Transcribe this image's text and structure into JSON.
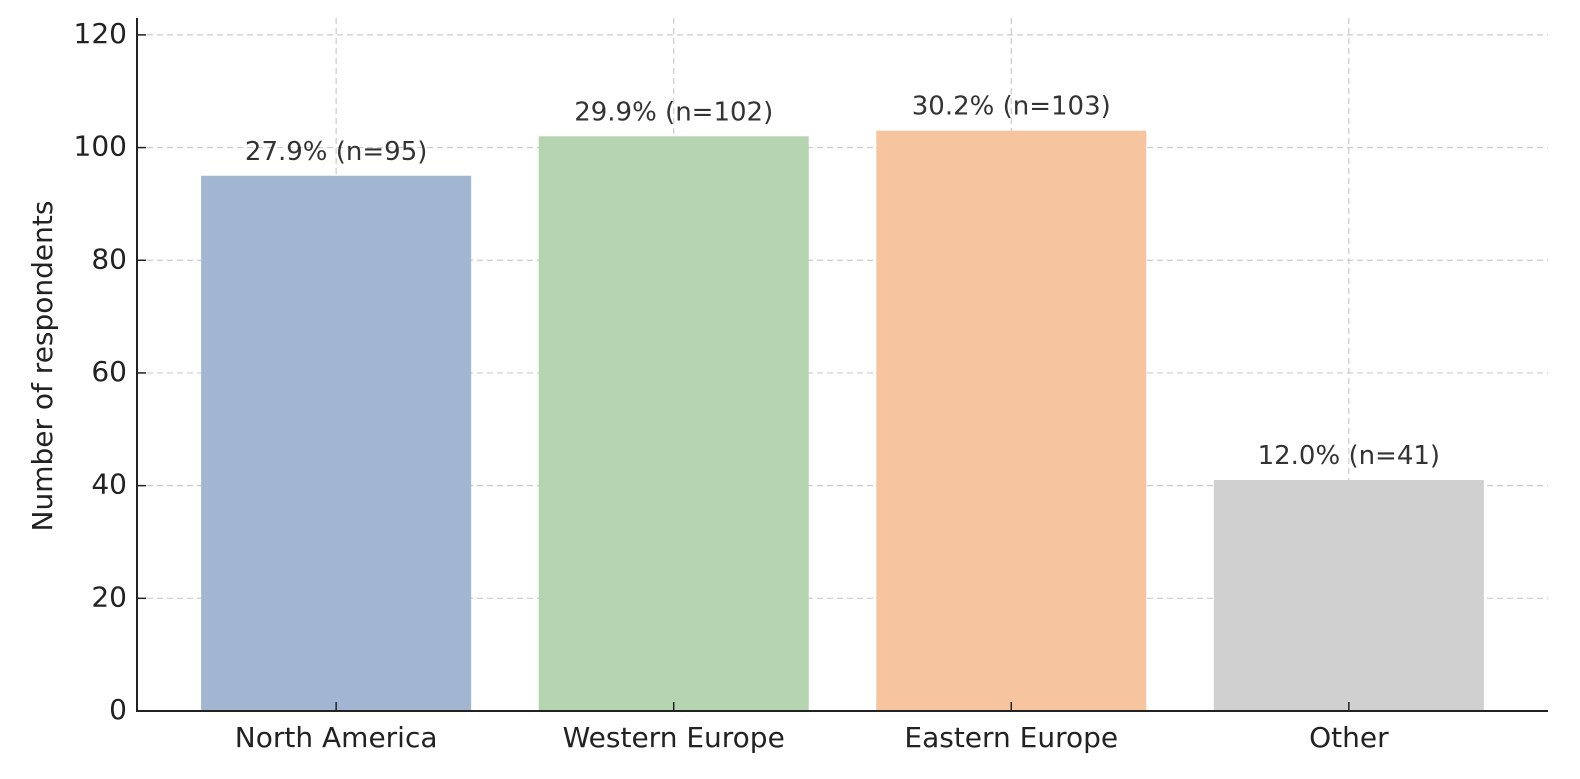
{
  "chart_data": {
    "type": "bar",
    "y_label": "Number of respondents",
    "categories": [
      "North America",
      "Western Europe",
      "Eastern Europe",
      "Other"
    ],
    "values": [
      95,
      102,
      103,
      41
    ],
    "value_labels": [
      "27.9% (n=95)",
      "29.9% (n=102)",
      "30.2% (n=103)",
      "12.0% (n=41)"
    ],
    "colors": [
      "#a2b6d2",
      "#b5d5b0",
      "#f6c5a0",
      "#d0d0d0"
    ],
    "ylim": [
      0,
      123
    ],
    "yticks": [
      0,
      20,
      40,
      60,
      80,
      100,
      120
    ],
    "grid": true
  }
}
